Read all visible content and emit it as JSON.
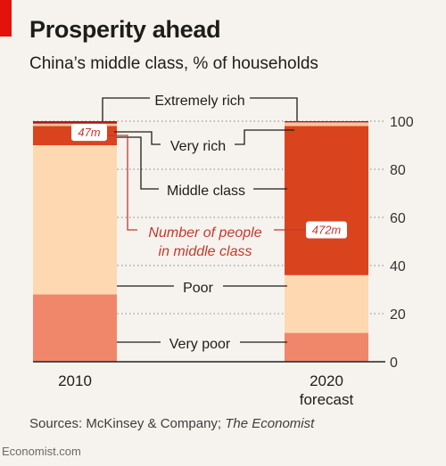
{
  "header": {
    "title": "Prosperity ahead",
    "subtitle": "China’s middle class, % of households"
  },
  "footer": {
    "sources_prefix": "Sources: McKinsey & Company; ",
    "sources_italic": "The Economist"
  },
  "watermark": "Economist.com",
  "colors": {
    "brand_red": "#e3120b",
    "very_poor": "#f0876a",
    "poor": "#fdd8b0",
    "middle_class": "#d9441f",
    "very_rich": "#fbc49c",
    "extremely_rich": "#b01a16",
    "people_label": "#c4382c"
  },
  "chart_data": {
    "type": "bar",
    "stacked": true,
    "categories": [
      "2010",
      "2020\nforecast"
    ],
    "category_lines": [
      [
        "2010"
      ],
      [
        "2020",
        "forecast"
      ]
    ],
    "ylim": [
      0,
      100
    ],
    "yticks": [
      "0",
      "20",
      "40",
      "60",
      "80",
      "100"
    ],
    "series": [
      {
        "name": "Very poor",
        "values": [
          28,
          12
        ]
      },
      {
        "name": "Poor",
        "values": [
          62,
          24
        ]
      },
      {
        "name": "Middle class",
        "values": [
          8,
          62
        ]
      },
      {
        "name": "Very rich",
        "values": [
          1,
          1.5
        ]
      },
      {
        "name": "Extremely rich",
        "values": [
          1,
          0.5
        ]
      }
    ],
    "people_in_middle_class": [
      "47m",
      "472m"
    ],
    "people_label": [
      "Number of people",
      "in middle class"
    ],
    "grid": true
  }
}
